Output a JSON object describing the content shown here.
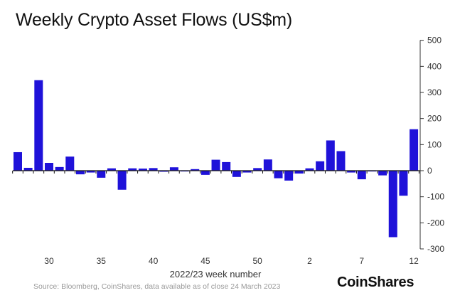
{
  "chart_data": {
    "type": "bar",
    "title": "Weekly Crypto Asset Flows (US$m)",
    "xlabel": "2022/23 week number",
    "ylabel": "",
    "ylim": [
      -300,
      500
    ],
    "yticks": [
      500,
      400,
      300,
      200,
      100,
      0,
      -100,
      -200,
      -300
    ],
    "xtick_labels": [
      "30",
      "35",
      "40",
      "45",
      "50",
      "2",
      "7",
      "12"
    ],
    "xtick_positions": [
      3,
      8,
      13,
      18,
      23,
      28,
      33,
      38
    ],
    "categories": [
      "27",
      "28",
      "29",
      "30",
      "31",
      "32",
      "33",
      "34",
      "35",
      "36",
      "37",
      "38",
      "39",
      "40",
      "41",
      "42",
      "43",
      "44",
      "45",
      "46",
      "47",
      "48",
      "49",
      "50",
      "51",
      "52",
      "53",
      "1",
      "2",
      "3",
      "4",
      "5",
      "6",
      "7",
      "8",
      "9",
      "10",
      "11",
      "12"
    ],
    "values": [
      71,
      11,
      347,
      30,
      14,
      54,
      -14,
      -7,
      -27,
      9,
      -73,
      9,
      8,
      10,
      -4,
      13,
      -3,
      6,
      -16,
      42,
      33,
      -24,
      -7,
      10,
      43,
      -29,
      -38,
      -11,
      9,
      36,
      116,
      75,
      -7,
      -33,
      -3,
      -18,
      -255,
      -96,
      159
    ],
    "bar_color": "#1f12d9",
    "grid": false,
    "y_axis_side": "right"
  },
  "source": "Source: Bloomberg, CoinShares, data available as of close 24 March 2023",
  "logo": "CoinShares"
}
